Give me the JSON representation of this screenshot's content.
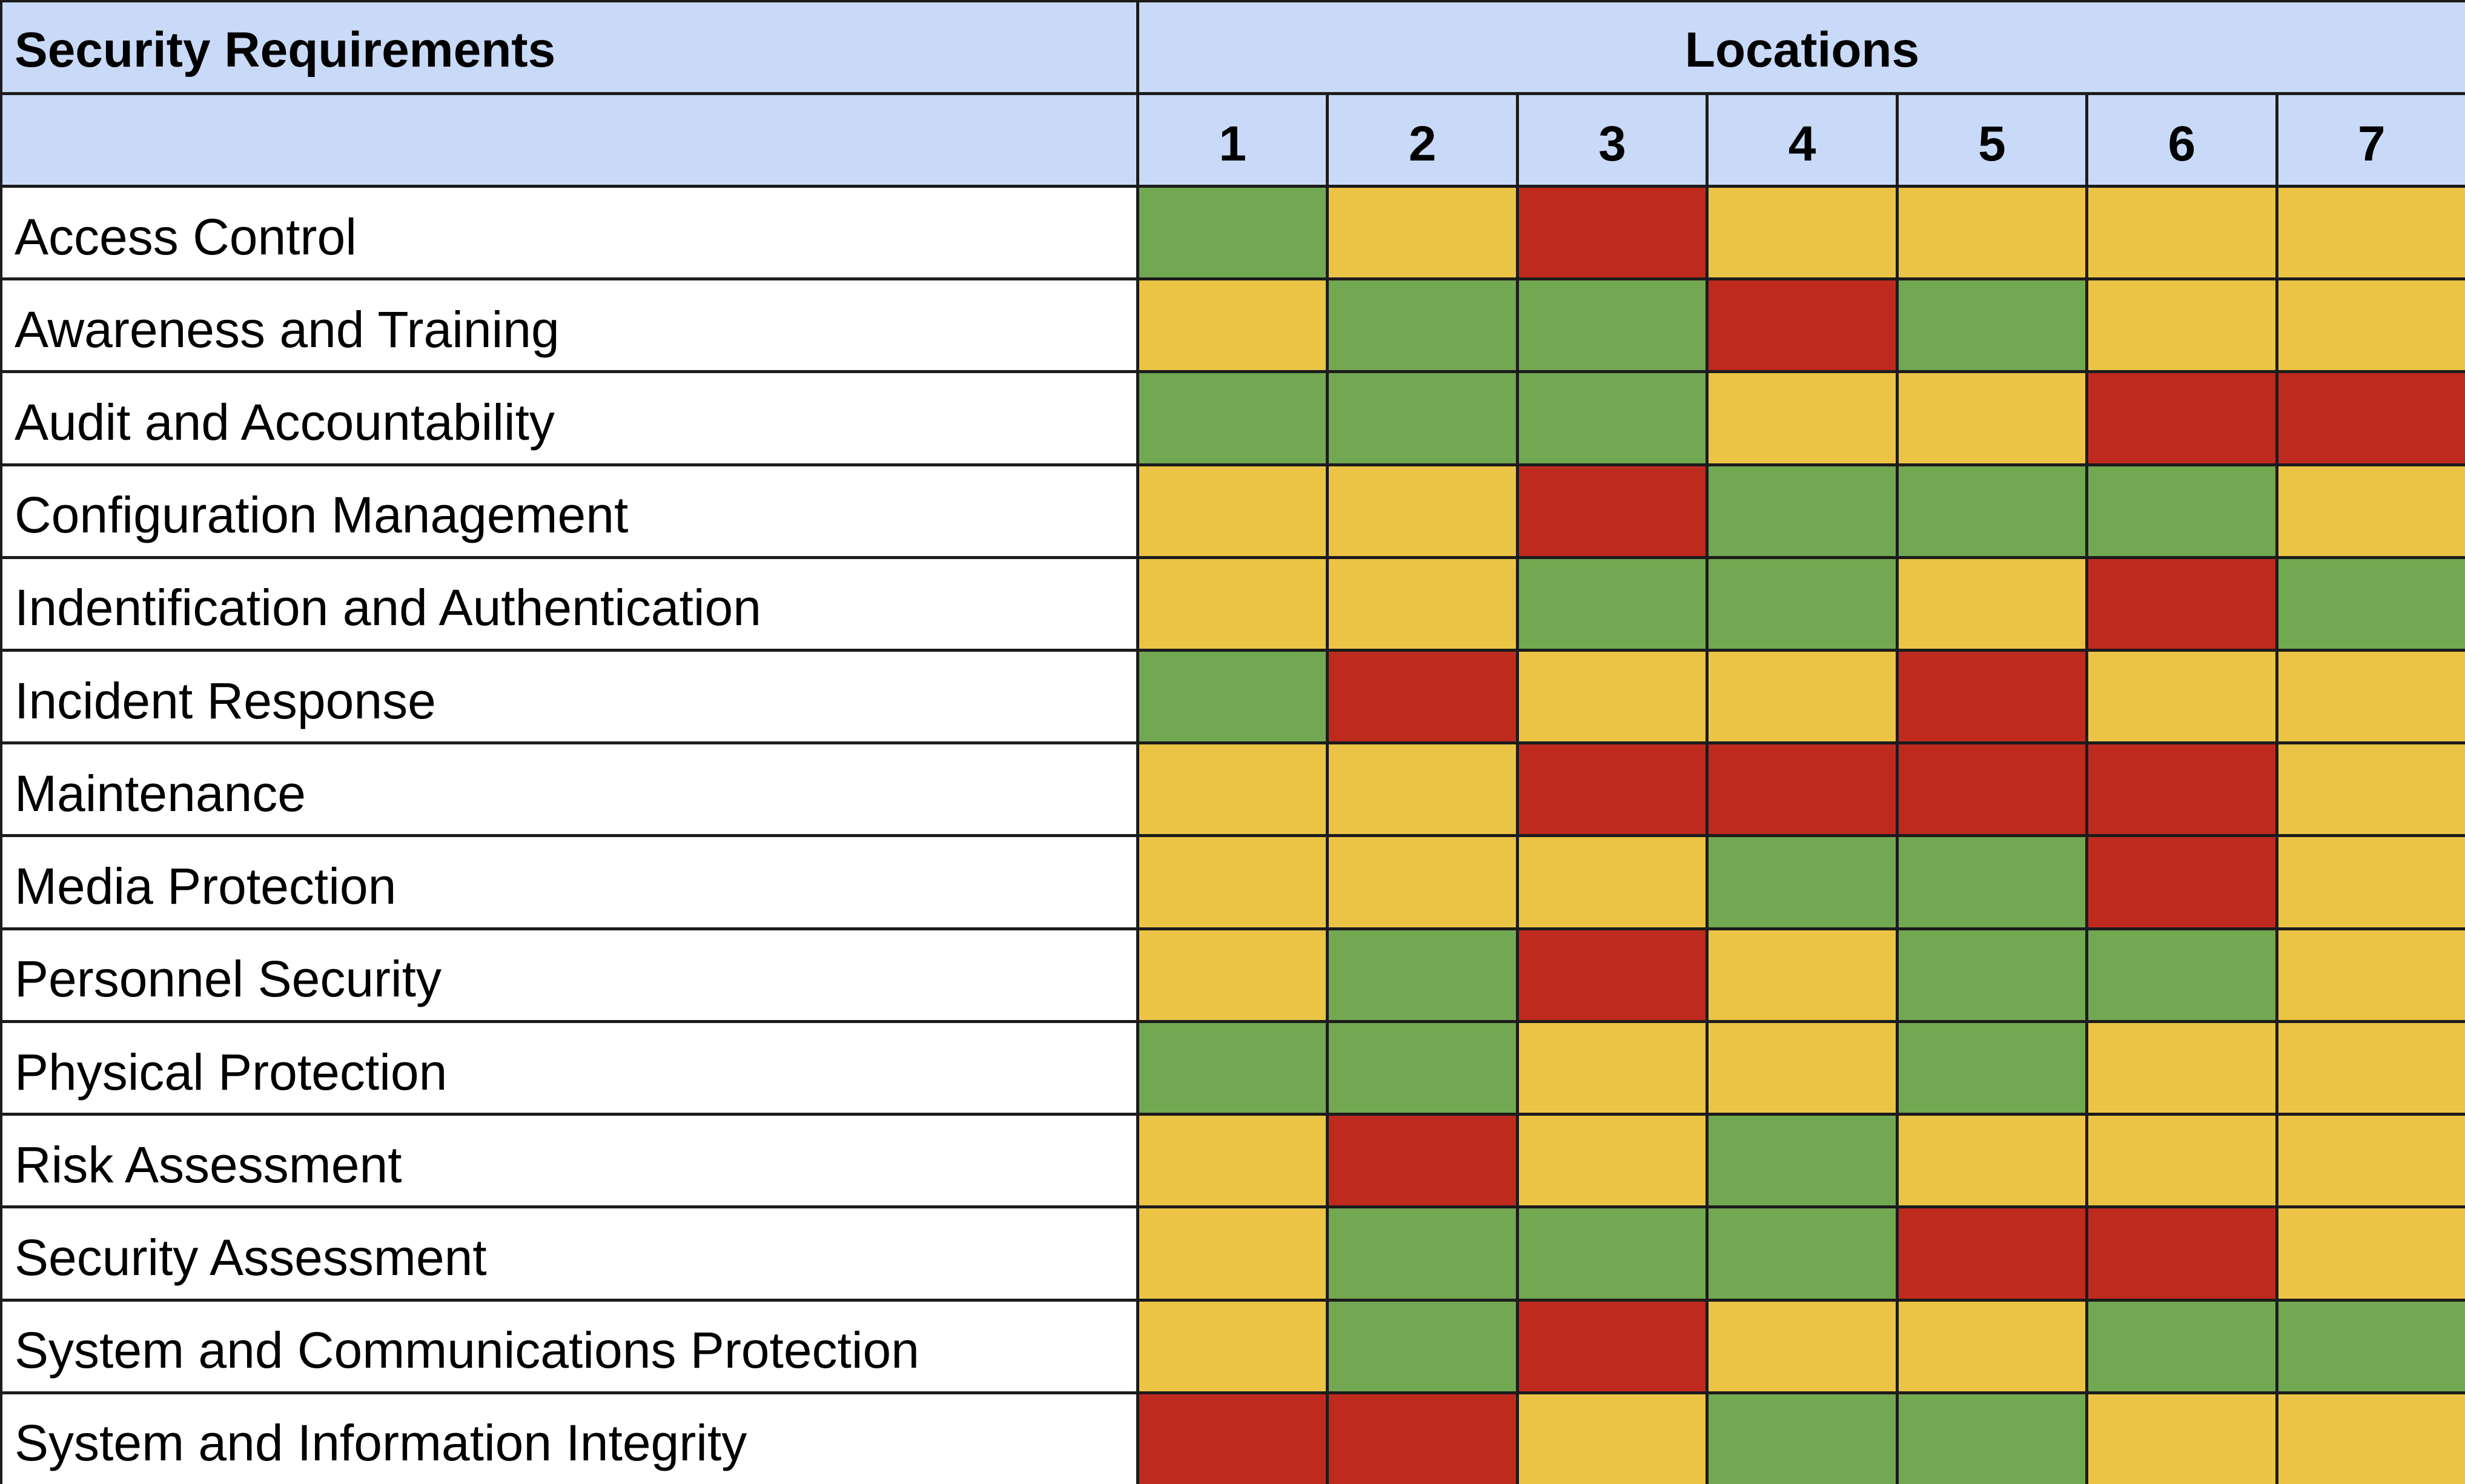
{
  "table": {
    "title": "Security Requirements",
    "group_header": "Locations",
    "columns": [
      "1",
      "2",
      "3",
      "4",
      "5",
      "6",
      "7"
    ],
    "palette": {
      "G": "#72a851",
      "Y": "#ecc445",
      "R": "#bf2a1e"
    },
    "rows": [
      {
        "label": "Access Control",
        "cells": [
          "G",
          "Y",
          "R",
          "Y",
          "Y",
          "Y",
          "Y"
        ]
      },
      {
        "label": "Awareness and Training",
        "cells": [
          "Y",
          "G",
          "G",
          "R",
          "G",
          "Y",
          "Y"
        ]
      },
      {
        "label": "Audit and Accountability",
        "cells": [
          "G",
          "G",
          "G",
          "Y",
          "Y",
          "R",
          "R"
        ]
      },
      {
        "label": "Configuration Management",
        "cells": [
          "Y",
          "Y",
          "R",
          "G",
          "G",
          "G",
          "Y"
        ]
      },
      {
        "label": "Indentification and Authentication",
        "cells": [
          "Y",
          "Y",
          "G",
          "G",
          "Y",
          "R",
          "G"
        ]
      },
      {
        "label": "Incident Response",
        "cells": [
          "G",
          "R",
          "Y",
          "Y",
          "R",
          "Y",
          "Y"
        ]
      },
      {
        "label": "Maintenance",
        "cells": [
          "Y",
          "Y",
          "R",
          "R",
          "R",
          "R",
          "Y"
        ]
      },
      {
        "label": "Media Protection",
        "cells": [
          "Y",
          "Y",
          "Y",
          "G",
          "G",
          "R",
          "Y"
        ]
      },
      {
        "label": "Personnel Security",
        "cells": [
          "Y",
          "G",
          "R",
          "Y",
          "G",
          "G",
          "Y"
        ]
      },
      {
        "label": "Physical Protection",
        "cells": [
          "G",
          "G",
          "Y",
          "Y",
          "G",
          "Y",
          "Y"
        ]
      },
      {
        "label": "Risk Assessment",
        "cells": [
          "Y",
          "R",
          "Y",
          "G",
          "Y",
          "Y",
          "Y"
        ]
      },
      {
        "label": "Security Assessment",
        "cells": [
          "Y",
          "G",
          "G",
          "G",
          "R",
          "R",
          "Y"
        ]
      },
      {
        "label": "System and Communications Protection",
        "cells": [
          "Y",
          "G",
          "R",
          "Y",
          "Y",
          "G",
          "G"
        ]
      },
      {
        "label": "System and Information Integrity",
        "cells": [
          "R",
          "R",
          "Y",
          "G",
          "G",
          "Y",
          "Y"
        ]
      }
    ]
  }
}
